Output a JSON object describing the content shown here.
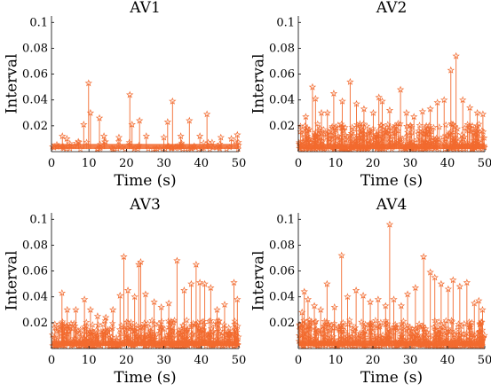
{
  "figure": {
    "colors": {
      "series": "#f26a2e"
    }
  },
  "chart_data": [
    {
      "type": "stem",
      "title": "AV1",
      "xlabel": "Time (s)",
      "ylabel": "Interval",
      "xlim": [
        0,
        50
      ],
      "ylim": [
        0,
        0.105
      ],
      "xticks": [
        0,
        10,
        20,
        30,
        40,
        50
      ],
      "yticks": [
        0.02,
        0.04,
        0.06,
        0.08,
        0.1
      ],
      "grid": false,
      "marker": "pentagram",
      "baseline": 0.002,
      "noise_max": 0.006,
      "noise_count": 90,
      "peaks": [
        {
          "x": 2.9,
          "y": 0.012
        },
        {
          "x": 4.1,
          "y": 0.01
        },
        {
          "x": 8.6,
          "y": 0.021
        },
        {
          "x": 9.9,
          "y": 0.053
        },
        {
          "x": 10.4,
          "y": 0.03
        },
        {
          "x": 12.8,
          "y": 0.026
        },
        {
          "x": 14.0,
          "y": 0.012
        },
        {
          "x": 18.0,
          "y": 0.011
        },
        {
          "x": 20.9,
          "y": 0.044
        },
        {
          "x": 21.5,
          "y": 0.021
        },
        {
          "x": 23.5,
          "y": 0.024
        },
        {
          "x": 25.3,
          "y": 0.012
        },
        {
          "x": 30.0,
          "y": 0.011
        },
        {
          "x": 31.0,
          "y": 0.023
        },
        {
          "x": 32.3,
          "y": 0.039
        },
        {
          "x": 34.5,
          "y": 0.012
        },
        {
          "x": 36.8,
          "y": 0.024
        },
        {
          "x": 39.6,
          "y": 0.012
        },
        {
          "x": 41.5,
          "y": 0.029
        },
        {
          "x": 45.2,
          "y": 0.011
        },
        {
          "x": 48.0,
          "y": 0.01
        },
        {
          "x": 49.6,
          "y": 0.013
        }
      ]
    },
    {
      "type": "stem",
      "title": "AV2",
      "xlabel": "Time (s)",
      "ylabel": "Interval",
      "xlim": [
        0,
        50
      ],
      "ylim": [
        0,
        0.105
      ],
      "xticks": [
        0,
        10,
        20,
        30,
        40,
        50
      ],
      "yticks": [
        0.02,
        0.04,
        0.06,
        0.08,
        0.1
      ],
      "grid": false,
      "marker": "pentagram",
      "baseline": 0.002,
      "noise_max": 0.02,
      "noise_count": 520,
      "peaks": [
        {
          "x": 2.0,
          "y": 0.027
        },
        {
          "x": 3.8,
          "y": 0.05
        },
        {
          "x": 4.6,
          "y": 0.041
        },
        {
          "x": 6.2,
          "y": 0.03
        },
        {
          "x": 7.8,
          "y": 0.03
        },
        {
          "x": 9.5,
          "y": 0.045
        },
        {
          "x": 11.8,
          "y": 0.039
        },
        {
          "x": 13.9,
          "y": 0.054
        },
        {
          "x": 15.6,
          "y": 0.037
        },
        {
          "x": 17.6,
          "y": 0.033
        },
        {
          "x": 20.1,
          "y": 0.03
        },
        {
          "x": 21.6,
          "y": 0.042
        },
        {
          "x": 22.5,
          "y": 0.039
        },
        {
          "x": 24.5,
          "y": 0.032
        },
        {
          "x": 27.4,
          "y": 0.048
        },
        {
          "x": 29.0,
          "y": 0.03
        },
        {
          "x": 31.0,
          "y": 0.027
        },
        {
          "x": 33.3,
          "y": 0.031
        },
        {
          "x": 35.4,
          "y": 0.033
        },
        {
          "x": 37.3,
          "y": 0.038
        },
        {
          "x": 39.1,
          "y": 0.04
        },
        {
          "x": 40.9,
          "y": 0.063
        },
        {
          "x": 42.3,
          "y": 0.074
        },
        {
          "x": 44.1,
          "y": 0.04
        },
        {
          "x": 46.0,
          "y": 0.034
        },
        {
          "x": 48.0,
          "y": 0.03
        },
        {
          "x": 49.5,
          "y": 0.029
        }
      ]
    },
    {
      "type": "stem",
      "title": "AV3",
      "xlabel": "Time (s)",
      "ylabel": "Interval",
      "xlim": [
        0,
        50
      ],
      "ylim": [
        0,
        0.105
      ],
      "xticks": [
        0,
        10,
        20,
        30,
        40,
        50
      ],
      "yticks": [
        0.02,
        0.04,
        0.06,
        0.08,
        0.1
      ],
      "grid": false,
      "marker": "pentagram",
      "baseline": 0.002,
      "noise_max": 0.02,
      "noise_count": 560,
      "peaks": [
        {
          "x": 2.8,
          "y": 0.043
        },
        {
          "x": 4.2,
          "y": 0.03
        },
        {
          "x": 6.5,
          "y": 0.03
        },
        {
          "x": 8.8,
          "y": 0.038
        },
        {
          "x": 10.4,
          "y": 0.03
        },
        {
          "x": 12.3,
          "y": 0.025
        },
        {
          "x": 14.5,
          "y": 0.024
        },
        {
          "x": 16.4,
          "y": 0.03
        },
        {
          "x": 18.3,
          "y": 0.041
        },
        {
          "x": 19.3,
          "y": 0.071
        },
        {
          "x": 20.4,
          "y": 0.045
        },
        {
          "x": 22.2,
          "y": 0.04
        },
        {
          "x": 23.3,
          "y": 0.065
        },
        {
          "x": 23.8,
          "y": 0.067
        },
        {
          "x": 25.1,
          "y": 0.042
        },
        {
          "x": 27.4,
          "y": 0.036
        },
        {
          "x": 29.3,
          "y": 0.032
        },
        {
          "x": 31.3,
          "y": 0.035
        },
        {
          "x": 33.5,
          "y": 0.068
        },
        {
          "x": 35.4,
          "y": 0.045
        },
        {
          "x": 37.3,
          "y": 0.05
        },
        {
          "x": 38.6,
          "y": 0.065
        },
        {
          "x": 39.6,
          "y": 0.051
        },
        {
          "x": 40.9,
          "y": 0.05
        },
        {
          "x": 42.5,
          "y": 0.047
        },
        {
          "x": 44.2,
          "y": 0.03
        },
        {
          "x": 46.2,
          "y": 0.034
        },
        {
          "x": 48.7,
          "y": 0.051
        },
        {
          "x": 49.6,
          "y": 0.038
        }
      ]
    },
    {
      "type": "stem",
      "title": "AV4",
      "xlabel": "Time (s)",
      "ylabel": "Interval",
      "xlim": [
        0,
        50
      ],
      "ylim": [
        0,
        0.105
      ],
      "xticks": [
        0,
        10,
        20,
        30,
        40,
        50
      ],
      "yticks": [
        0.02,
        0.04,
        0.06,
        0.08,
        0.1
      ],
      "grid": false,
      "marker": "pentagram",
      "baseline": 0.002,
      "noise_max": 0.02,
      "noise_count": 560,
      "peaks": [
        {
          "x": 1.0,
          "y": 0.028
        },
        {
          "x": 1.6,
          "y": 0.044
        },
        {
          "x": 2.6,
          "y": 0.038
        },
        {
          "x": 4.3,
          "y": 0.033
        },
        {
          "x": 6.0,
          "y": 0.03
        },
        {
          "x": 7.7,
          "y": 0.05
        },
        {
          "x": 9.7,
          "y": 0.032
        },
        {
          "x": 11.6,
          "y": 0.072
        },
        {
          "x": 13.2,
          "y": 0.04
        },
        {
          "x": 15.5,
          "y": 0.045
        },
        {
          "x": 17.4,
          "y": 0.041
        },
        {
          "x": 19.3,
          "y": 0.036
        },
        {
          "x": 21.4,
          "y": 0.038
        },
        {
          "x": 23.4,
          "y": 0.033
        },
        {
          "x": 24.5,
          "y": 0.096
        },
        {
          "x": 25.6,
          "y": 0.038
        },
        {
          "x": 27.6,
          "y": 0.033
        },
        {
          "x": 29.3,
          "y": 0.042
        },
        {
          "x": 31.4,
          "y": 0.047
        },
        {
          "x": 33.6,
          "y": 0.071
        },
        {
          "x": 35.4,
          "y": 0.059
        },
        {
          "x": 36.6,
          "y": 0.055
        },
        {
          "x": 38.3,
          "y": 0.05
        },
        {
          "x": 40.2,
          "y": 0.046
        },
        {
          "x": 41.5,
          "y": 0.053
        },
        {
          "x": 43.3,
          "y": 0.048
        },
        {
          "x": 45.2,
          "y": 0.051
        },
        {
          "x": 47.2,
          "y": 0.035
        },
        {
          "x": 48.4,
          "y": 0.037
        },
        {
          "x": 49.4,
          "y": 0.03
        }
      ]
    }
  ]
}
